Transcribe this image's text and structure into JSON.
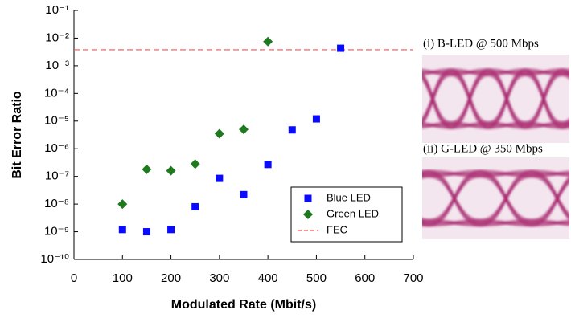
{
  "chart_data": {
    "type": "scatter",
    "xlabel": "Modulated Rate (Mbit/s)",
    "ylabel": "Bit Error Ratio",
    "xlim": [
      0,
      700
    ],
    "xticks": [
      0,
      100,
      200,
      300,
      400,
      500,
      600,
      700
    ],
    "ylim": [
      1e-10,
      0.1
    ],
    "ylog": true,
    "yticks": [
      {
        "value": 1e-10,
        "label": "10⁻¹⁰"
      },
      {
        "value": 1e-09,
        "label": "10⁻⁹"
      },
      {
        "value": 1e-08,
        "label": "10⁻⁸"
      },
      {
        "value": 1e-07,
        "label": "10⁻⁷"
      },
      {
        "value": 1e-06,
        "label": "10⁻⁶"
      },
      {
        "value": 1e-05,
        "label": "10⁻⁵"
      },
      {
        "value": 0.0001,
        "label": "10⁻⁴"
      },
      {
        "value": 0.001,
        "label": "10⁻³"
      },
      {
        "value": 0.01,
        "label": "10⁻²"
      },
      {
        "value": 0.1,
        "label": "10⁻¹"
      }
    ],
    "legend": "lower right",
    "series": [
      {
        "name": "Blue LED",
        "color": "#0a0aff",
        "marker": "square",
        "x": [
          100,
          150,
          200,
          250,
          300,
          350,
          400,
          450,
          500,
          550
        ],
        "values": [
          1.2e-09,
          1e-09,
          1.2e-09,
          8e-09,
          8.5e-08,
          2.2e-08,
          2.7e-07,
          4.8e-06,
          1.2e-05,
          0.0043
        ]
      },
      {
        "name": "Green LED",
        "color": "#1f7a1f",
        "marker": "diamond",
        "x": [
          100,
          150,
          200,
          250,
          300,
          350,
          400
        ],
        "values": [
          1e-08,
          1.8e-07,
          1.6e-07,
          2.8e-07,
          3.5e-06,
          5e-06,
          0.0075
        ]
      }
    ],
    "hlines": [
      {
        "name": "FEC",
        "value": 0.0038,
        "color": "#ff4d4d"
      }
    ],
    "panels": [
      "(i) B-LED @ 500 Mbps",
      "(ii) G-LED @ 350 Mbps"
    ]
  }
}
